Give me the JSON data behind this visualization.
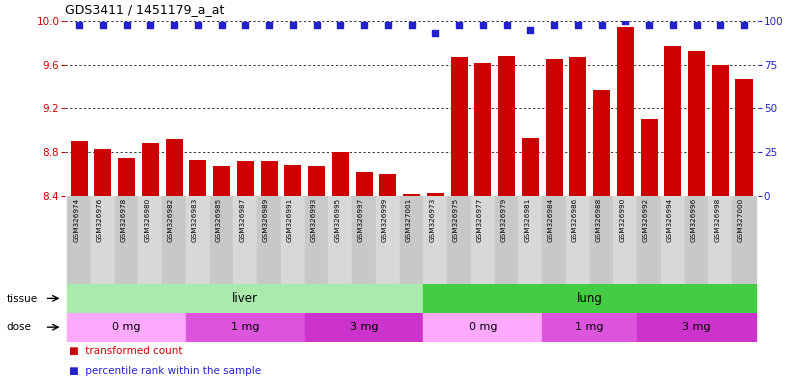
{
  "title": "GDS3411 / 1451179_a_at",
  "samples": [
    "GSM326974",
    "GSM326976",
    "GSM326978",
    "GSM326980",
    "GSM326982",
    "GSM326983",
    "GSM326985",
    "GSM326987",
    "GSM326989",
    "GSM326991",
    "GSM326993",
    "GSM326995",
    "GSM326997",
    "GSM326999",
    "GSM327001",
    "GSM326973",
    "GSM326975",
    "GSM326977",
    "GSM326979",
    "GSM326981",
    "GSM326984",
    "GSM326986",
    "GSM326988",
    "GSM326990",
    "GSM326992",
    "GSM326994",
    "GSM326996",
    "GSM326998",
    "GSM327000"
  ],
  "bar_values": [
    8.9,
    8.83,
    8.75,
    8.88,
    8.92,
    8.73,
    8.67,
    8.72,
    8.72,
    8.68,
    8.67,
    8.8,
    8.62,
    8.6,
    8.42,
    8.43,
    9.67,
    9.62,
    9.68,
    8.93,
    9.65,
    9.67,
    9.37,
    9.95,
    9.1,
    9.77,
    9.73,
    9.6,
    9.47
  ],
  "percentile_values": [
    98,
    98,
    98,
    98,
    98,
    98,
    98,
    98,
    98,
    98,
    98,
    98,
    98,
    98,
    98,
    93,
    98,
    98,
    98,
    95,
    98,
    98,
    98,
    100,
    98,
    98,
    98,
    98,
    98
  ],
  "bar_color": "#cc0000",
  "dot_color": "#2222cc",
  "ylim_left": [
    8.4,
    10.0
  ],
  "ylim_right": [
    0,
    100
  ],
  "yticks_left": [
    8.4,
    8.8,
    9.2,
    9.6,
    10.0
  ],
  "yticks_right": [
    0,
    25,
    50,
    75,
    100
  ],
  "grid_lines": [
    8.8,
    9.2,
    9.6,
    10.0
  ],
  "tissue_groups": [
    {
      "label": "liver",
      "start": 0,
      "end": 14,
      "color": "#aaeaaa"
    },
    {
      "label": "lung",
      "start": 15,
      "end": 28,
      "color": "#44cc44"
    }
  ],
  "dose_groups": [
    {
      "label": "0 mg",
      "start": 0,
      "end": 4,
      "color": "#ffaaff"
    },
    {
      "label": "1 mg",
      "start": 5,
      "end": 9,
      "color": "#dd55dd"
    },
    {
      "label": "3 mg",
      "start": 10,
      "end": 14,
      "color": "#cc33cc"
    },
    {
      "label": "0 mg",
      "start": 15,
      "end": 19,
      "color": "#ffaaff"
    },
    {
      "label": "1 mg",
      "start": 20,
      "end": 23,
      "color": "#dd55dd"
    },
    {
      "label": "3 mg",
      "start": 24,
      "end": 28,
      "color": "#cc33cc"
    }
  ],
  "legend_items": [
    {
      "label": "transformed count",
      "color": "#cc0000"
    },
    {
      "label": "percentile rank within the sample",
      "color": "#2222cc"
    }
  ],
  "tissue_row_label": "tissue",
  "dose_row_label": "dose",
  "bg_color": "#ffffff",
  "label_bg_even": "#c8c8c8",
  "label_bg_odd": "#d8d8d8"
}
